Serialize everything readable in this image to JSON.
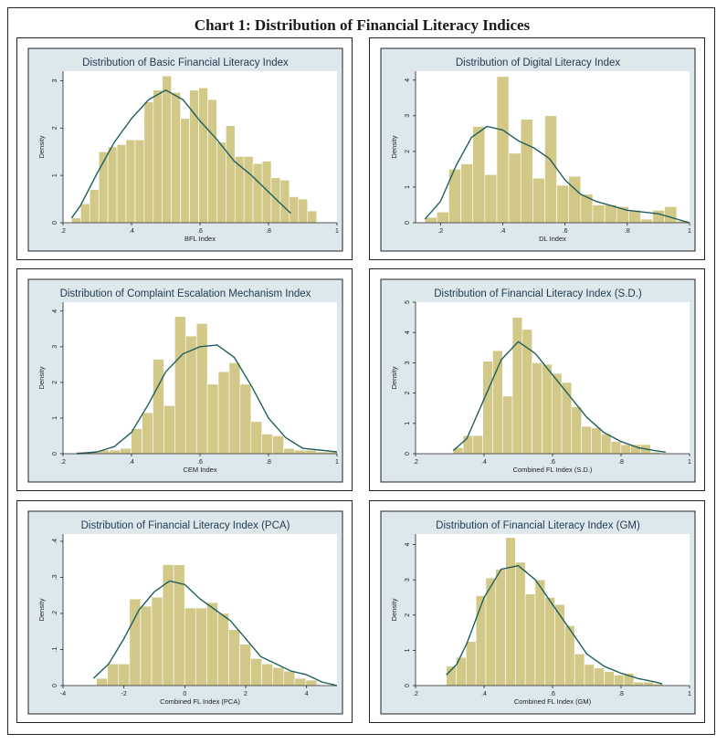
{
  "page_title": "Chart 1: Distribution of Financial Literacy Indices",
  "chart_data": [
    {
      "type": "bar",
      "title": "Distribution of Basic Financial Literacy Index",
      "xlabel": "BFL Index",
      "ylabel": "Density",
      "xlim": [
        0.2,
        1.0
      ],
      "ylim": [
        0,
        3.2
      ],
      "xticks": [
        0.2,
        0.4,
        0.6,
        0.8,
        1.0
      ],
      "xtick_labels": [
        ".2",
        ".4",
        ".6",
        ".8",
        "1"
      ],
      "yticks": [
        0,
        1,
        2,
        3
      ],
      "ytick_labels": [
        "0",
        "1",
        "2",
        "3"
      ],
      "bin_start": 0.225,
      "bin_width": 0.0265,
      "values": [
        0.1,
        0.4,
        0.7,
        1.5,
        1.6,
        1.65,
        1.75,
        1.75,
        2.55,
        2.8,
        3.1,
        2.75,
        2.2,
        2.8,
        2.85,
        2.6,
        1.7,
        2.05,
        1.4,
        1.4,
        1.25,
        1.3,
        0.95,
        0.9,
        0.55,
        0.5,
        0.25
      ],
      "density_curve": {
        "x": [
          0.225,
          0.25,
          0.3,
          0.35,
          0.4,
          0.45,
          0.5,
          0.55,
          0.6,
          0.65,
          0.7,
          0.75,
          0.8,
          0.85,
          0.865
        ],
        "y": [
          0.1,
          0.35,
          1.05,
          1.7,
          2.2,
          2.6,
          2.8,
          2.6,
          2.15,
          1.75,
          1.3,
          1.0,
          0.65,
          0.3,
          0.2
        ]
      }
    },
    {
      "type": "bar",
      "title": "Distribution of Digital Literacy Index",
      "xlabel": "DL Index",
      "ylabel": "Density",
      "xlim": [
        0.12,
        1.0
      ],
      "ylim": [
        0,
        4.25
      ],
      "xticks": [
        0.2,
        0.4,
        0.6,
        0.8,
        1.0
      ],
      "xtick_labels": [
        ".2",
        ".4",
        ".6",
        ".8",
        "1"
      ],
      "yticks": [
        0,
        1,
        2,
        3,
        4
      ],
      "ytick_labels": [
        "0",
        "1",
        "2",
        "3",
        "4"
      ],
      "bin_start": 0.15,
      "bin_width": 0.0385,
      "values": [
        0.15,
        0.3,
        1.5,
        1.65,
        2.7,
        1.35,
        4.1,
        1.95,
        2.9,
        1.25,
        3.0,
        1.05,
        1.3,
        0.8,
        0.5,
        0.5,
        0.45,
        0.35,
        0.1,
        0.35,
        0.45,
        0.05
      ],
      "density_curve": {
        "x": [
          0.15,
          0.2,
          0.25,
          0.3,
          0.35,
          0.4,
          0.45,
          0.5,
          0.55,
          0.6,
          0.65,
          0.7,
          0.8,
          0.9,
          1.0
        ],
        "y": [
          0.1,
          0.6,
          1.6,
          2.4,
          2.7,
          2.6,
          2.3,
          2.1,
          1.8,
          1.2,
          0.8,
          0.6,
          0.35,
          0.25,
          0.0
        ]
      }
    },
    {
      "type": "bar",
      "title": "Distribution of Complaint Escalation Mechanism Index",
      "xlabel": "CEM Index",
      "ylabel": "Density",
      "xlim": [
        0.2,
        1.0
      ],
      "ylim": [
        0,
        4.25
      ],
      "xticks": [
        0.2,
        0.4,
        0.6,
        0.8,
        1.0
      ],
      "xtick_labels": [
        ".2",
        ".4",
        ".6",
        ".8",
        "1"
      ],
      "yticks": [
        0,
        1,
        2,
        3,
        4
      ],
      "ytick_labels": [
        "0",
        "1",
        "2",
        "3",
        "4"
      ],
      "bin_start": 0.24,
      "bin_width": 0.0318,
      "values": [
        0.05,
        0.05,
        0.1,
        0.1,
        0.15,
        0.7,
        1.15,
        2.65,
        1.35,
        3.85,
        3.3,
        3.65,
        1.95,
        2.3,
        2.55,
        1.95,
        0.9,
        0.55,
        0.5,
        0.15,
        0.1,
        0.1,
        0.05,
        0.05
      ],
      "density_curve": {
        "x": [
          0.24,
          0.3,
          0.35,
          0.4,
          0.45,
          0.5,
          0.55,
          0.6,
          0.65,
          0.7,
          0.75,
          0.8,
          0.85,
          0.9,
          1.0
        ],
        "y": [
          0.0,
          0.05,
          0.2,
          0.6,
          1.4,
          2.3,
          2.8,
          3.0,
          3.05,
          2.7,
          1.9,
          1.0,
          0.45,
          0.15,
          0.05
        ]
      }
    },
    {
      "type": "bar",
      "title": "Distribution of Financial Literacy Index (S.D.)",
      "xlabel": "Combined FL Index (S.D.)",
      "ylabel": "Density",
      "xlim": [
        0.2,
        1.0
      ],
      "ylim": [
        0,
        5.0
      ],
      "xticks": [
        0.2,
        0.4,
        0.6,
        0.8,
        1.0
      ],
      "xtick_labels": [
        ".2",
        ".4",
        ".6",
        ".8",
        "1"
      ],
      "yticks": [
        0,
        1,
        2,
        3,
        4,
        5
      ],
      "ytick_labels": [
        "0",
        "1",
        "2",
        "3",
        "4",
        "5"
      ],
      "bin_start": 0.31,
      "bin_width": 0.0288,
      "values": [
        0.2,
        0.6,
        0.6,
        3.05,
        3.4,
        1.9,
        4.5,
        4.1,
        3.0,
        2.95,
        2.65,
        2.35,
        1.55,
        0.9,
        0.85,
        0.65,
        0.4,
        0.3,
        0.3,
        0.3,
        0.05
      ],
      "density_curve": {
        "x": [
          0.31,
          0.35,
          0.4,
          0.45,
          0.5,
          0.55,
          0.6,
          0.65,
          0.7,
          0.75,
          0.8,
          0.85,
          0.9,
          0.93
        ],
        "y": [
          0.1,
          0.5,
          1.8,
          3.1,
          3.7,
          3.3,
          2.6,
          1.9,
          1.2,
          0.7,
          0.4,
          0.2,
          0.1,
          0.05
        ]
      }
    },
    {
      "type": "bar",
      "title": "Distribution of Financial Literacy Index (PCA)",
      "xlabel": "Combined FL Index (PCA)",
      "ylabel": "Density",
      "xlim": [
        -4,
        5
      ],
      "ylim": [
        0,
        0.42
      ],
      "xticks": [
        -4,
        -2,
        0,
        2,
        4
      ],
      "xtick_labels": [
        "-4",
        "-2",
        "0",
        "2",
        "4"
      ],
      "yticks": [
        0,
        0.1,
        0.2,
        0.3,
        0.4
      ],
      "ytick_labels": [
        "0",
        ".1",
        ".2",
        ".3",
        ".4"
      ],
      "bin_start": -2.9,
      "bin_width": 0.362,
      "values": [
        0.02,
        0.06,
        0.06,
        0.24,
        0.22,
        0.245,
        0.335,
        0.335,
        0.215,
        0.215,
        0.23,
        0.2,
        0.155,
        0.115,
        0.075,
        0.06,
        0.05,
        0.04,
        0.02,
        0.015
      ],
      "density_curve": {
        "x": [
          -3.0,
          -2.5,
          -2.0,
          -1.5,
          -1.0,
          -0.5,
          0.0,
          0.5,
          1.0,
          1.5,
          2.0,
          2.5,
          3.0,
          3.5,
          4.0,
          4.5,
          5.0
        ],
        "y": [
          0.02,
          0.06,
          0.13,
          0.21,
          0.26,
          0.29,
          0.28,
          0.24,
          0.21,
          0.18,
          0.13,
          0.08,
          0.06,
          0.04,
          0.03,
          0.01,
          0.0
        ]
      }
    },
    {
      "type": "bar",
      "title": "Distribution of Financial Literacy Index (GM)",
      "xlabel": "Combined FL Index (GM)",
      "ylabel": "Density",
      "xlim": [
        0.2,
        1.0
      ],
      "ylim": [
        0,
        4.3
      ],
      "xticks": [
        0.2,
        0.4,
        0.6,
        0.8,
        1.0
      ],
      "xtick_labels": [
        ".2",
        ".4",
        ".6",
        ".8",
        "1"
      ],
      "yticks": [
        0,
        1,
        2,
        3,
        4
      ],
      "ytick_labels": [
        "0",
        "1",
        "2",
        "3",
        "4"
      ],
      "bin_start": 0.29,
      "bin_width": 0.0288,
      "values": [
        0.55,
        0.8,
        1.25,
        2.55,
        3.05,
        3.3,
        4.2,
        3.5,
        2.6,
        3.0,
        2.5,
        2.3,
        1.7,
        0.9,
        0.6,
        0.5,
        0.4,
        0.3,
        0.35,
        0.1,
        0.1,
        0.05
      ],
      "density_curve": {
        "x": [
          0.29,
          0.32,
          0.35,
          0.4,
          0.45,
          0.5,
          0.55,
          0.6,
          0.65,
          0.7,
          0.75,
          0.8,
          0.85,
          0.9,
          0.92
        ],
        "y": [
          0.3,
          0.6,
          1.2,
          2.5,
          3.3,
          3.4,
          3.0,
          2.3,
          1.6,
          0.9,
          0.55,
          0.35,
          0.2,
          0.1,
          0.05
        ]
      }
    }
  ]
}
